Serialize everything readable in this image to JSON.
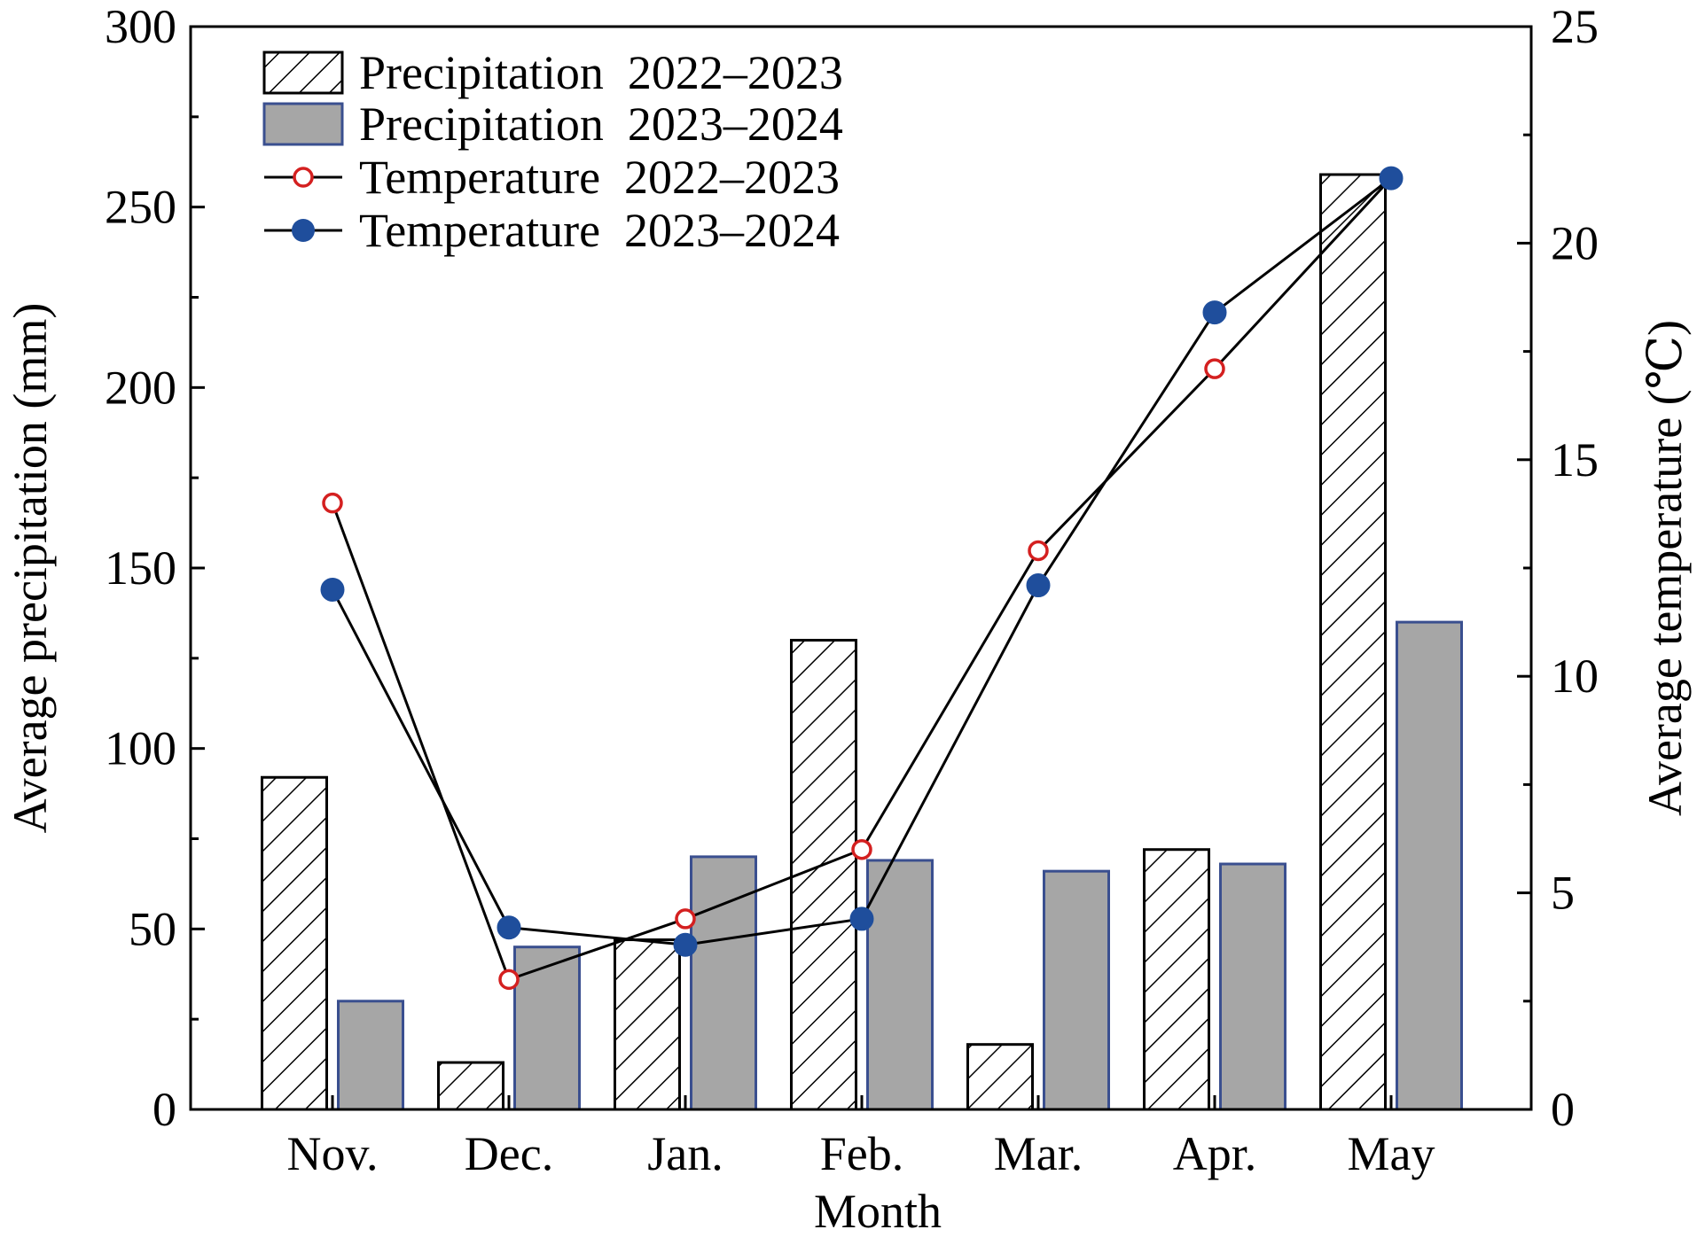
{
  "chart_data": {
    "type": "bar",
    "categories": [
      "Nov.",
      "Dec.",
      "Jan.",
      "Feb.",
      "Mar.",
      "Apr.",
      "May"
    ],
    "series": [
      {
        "name": "Precipitation  2022–2023",
        "kind": "bar",
        "axis": "left",
        "pattern": "hatch",
        "values": [
          92,
          13,
          47,
          130,
          18,
          72,
          259
        ]
      },
      {
        "name": "Precipitation  2023–2024",
        "kind": "bar",
        "axis": "left",
        "pattern": "solid-gray",
        "values": [
          30,
          45,
          70,
          69,
          66,
          68,
          135
        ]
      },
      {
        "name": "Temperature  2022–2023",
        "kind": "line",
        "axis": "right",
        "marker": "open-circle",
        "values": [
          14.0,
          3.0,
          4.4,
          6.0,
          12.9,
          17.1,
          21.5
        ]
      },
      {
        "name": "Temperature  2023–2024",
        "kind": "line",
        "axis": "right",
        "marker": "filled-circle",
        "values": [
          12.0,
          4.2,
          3.8,
          4.4,
          12.1,
          18.4,
          21.5
        ]
      }
    ],
    "xlabel": "Month",
    "ylabel": "Average precipitation (mm)",
    "y2label": "Average temperature (℃)",
    "ylim": [
      0,
      300
    ],
    "y2lim": [
      0,
      25
    ],
    "yticks": [
      "0",
      "50",
      "100",
      "150",
      "200",
      "250",
      "300"
    ],
    "y2ticks": [
      "0",
      "5",
      "10",
      "15",
      "20",
      "25"
    ],
    "legend": "top-left",
    "grid": false,
    "colors": {
      "axis": "#000000",
      "hatch_bar_fill": "#ffffff",
      "hatch_line": "#000000",
      "gray_bar_fill": "#a6a6a6",
      "gray_bar_edge": "#3a4f8f",
      "temp_2022_marker": "#d42020",
      "temp_2023_marker": "#1f4e9c",
      "line": "#000000"
    }
  }
}
